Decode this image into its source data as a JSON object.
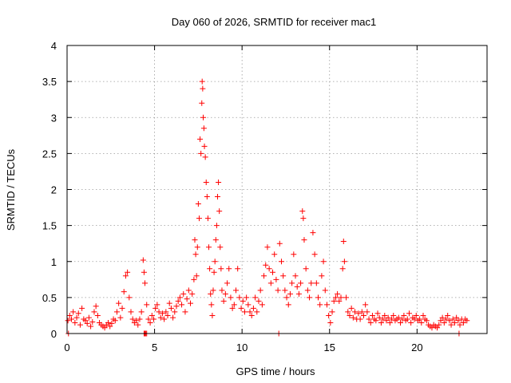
{
  "chart_data": {
    "type": "scatter",
    "title": "Day 060 of 2026, SRMTID for receiver mac1",
    "xlabel": "GPS time / hours",
    "ylabel": "SRMTID / TECUs",
    "xlim": [
      0,
      24
    ],
    "ylim": [
      0,
      4
    ],
    "xticks": [
      0,
      5,
      10,
      15,
      20
    ],
    "yticks": [
      0,
      0.5,
      1,
      1.5,
      2,
      2.5,
      3,
      3.5,
      4
    ],
    "xtick_labels": [
      "0",
      "5",
      "10",
      "15",
      "20"
    ],
    "ytick_labels": [
      "0",
      "0.5",
      "1",
      "1.5",
      "2",
      "2.5",
      "3",
      "3.5",
      "4"
    ],
    "grid": true,
    "marker": "plus",
    "color": "#ff0000",
    "series": [
      {
        "name": "SRMTID",
        "points": [
          [
            0.05,
            0.18
          ],
          [
            0.15,
            0.25
          ],
          [
            0.25,
            0.2
          ],
          [
            0.35,
            0.3
          ],
          [
            0.45,
            0.15
          ],
          [
            0.55,
            0.22
          ],
          [
            0.65,
            0.28
          ],
          [
            0.75,
            0.12
          ],
          [
            0.85,
            0.35
          ],
          [
            0.95,
            0.2
          ],
          [
            1.05,
            0.18
          ],
          [
            1.15,
            0.14
          ],
          [
            1.25,
            0.22
          ],
          [
            1.35,
            0.1
          ],
          [
            1.45,
            0.16
          ],
          [
            1.55,
            0.3
          ],
          [
            1.65,
            0.38
          ],
          [
            1.75,
            0.25
          ],
          [
            1.85,
            0.15
          ],
          [
            1.95,
            0.12
          ],
          [
            2.05,
            0.1
          ],
          [
            2.15,
            0.08
          ],
          [
            2.25,
            0.12
          ],
          [
            2.35,
            0.15
          ],
          [
            2.45,
            0.1
          ],
          [
            2.55,
            0.14
          ],
          [
            2.65,
            0.2
          ],
          [
            2.75,
            0.18
          ],
          [
            2.85,
            0.3
          ],
          [
            2.95,
            0.42
          ],
          [
            3.05,
            0.22
          ],
          [
            3.15,
            0.35
          ],
          [
            3.25,
            0.58
          ],
          [
            3.35,
            0.8
          ],
          [
            3.45,
            0.85
          ],
          [
            3.55,
            0.5
          ],
          [
            3.65,
            0.3
          ],
          [
            3.75,
            0.2
          ],
          [
            3.85,
            0.15
          ],
          [
            3.95,
            0.18
          ],
          [
            4.05,
            0.12
          ],
          [
            4.15,
            0.2
          ],
          [
            4.25,
            0.3
          ],
          [
            4.35,
            1.02
          ],
          [
            4.4,
            0.85
          ],
          [
            4.45,
            0.7
          ],
          [
            4.55,
            0.4
          ],
          [
            4.65,
            0.2
          ],
          [
            4.75,
            0.15
          ],
          [
            4.85,
            0.25
          ],
          [
            4.95,
            0.2
          ],
          [
            5.05,
            0.35
          ],
          [
            5.15,
            0.4
          ],
          [
            5.25,
            0.3
          ],
          [
            5.35,
            0.22
          ],
          [
            5.45,
            0.28
          ],
          [
            5.55,
            0.2
          ],
          [
            5.65,
            0.3
          ],
          [
            5.75,
            0.25
          ],
          [
            5.85,
            0.42
          ],
          [
            5.95,
            0.35
          ],
          [
            6.05,
            0.22
          ],
          [
            6.15,
            0.3
          ],
          [
            6.25,
            0.38
          ],
          [
            6.35,
            0.45
          ],
          [
            6.45,
            0.5
          ],
          [
            6.55,
            0.4
          ],
          [
            6.65,
            0.55
          ],
          [
            6.75,
            0.3
          ],
          [
            6.85,
            0.48
          ],
          [
            6.95,
            0.6
          ],
          [
            7.05,
            0.42
          ],
          [
            7.15,
            0.55
          ],
          [
            7.25,
            0.75
          ],
          [
            7.3,
            1.3
          ],
          [
            7.35,
            1.1
          ],
          [
            7.4,
            0.8
          ],
          [
            7.45,
            1.2
          ],
          [
            7.5,
            1.8
          ],
          [
            7.55,
            1.6
          ],
          [
            7.6,
            2.7
          ],
          [
            7.65,
            2.5
          ],
          [
            7.7,
            3.2
          ],
          [
            7.72,
            3.5
          ],
          [
            7.75,
            3.4
          ],
          [
            7.78,
            3.0
          ],
          [
            7.82,
            2.85
          ],
          [
            7.85,
            2.6
          ],
          [
            7.9,
            2.45
          ],
          [
            7.95,
            2.1
          ],
          [
            8.0,
            1.9
          ],
          [
            8.05,
            1.6
          ],
          [
            8.1,
            1.2
          ],
          [
            8.15,
            0.9
          ],
          [
            8.2,
            0.55
          ],
          [
            8.25,
            0.4
          ],
          [
            8.3,
            0.25
          ],
          [
            8.35,
            0.6
          ],
          [
            8.4,
            0.85
          ],
          [
            8.45,
            1.0
          ],
          [
            8.5,
            1.3
          ],
          [
            8.55,
            1.5
          ],
          [
            8.6,
            1.9
          ],
          [
            8.65,
            2.1
          ],
          [
            8.7,
            1.7
          ],
          [
            8.75,
            1.2
          ],
          [
            8.8,
            0.9
          ],
          [
            8.85,
            0.6
          ],
          [
            8.95,
            0.45
          ],
          [
            9.05,
            0.55
          ],
          [
            9.15,
            0.7
          ],
          [
            9.25,
            0.9
          ],
          [
            9.35,
            0.5
          ],
          [
            9.45,
            0.35
          ],
          [
            9.55,
            0.4
          ],
          [
            9.65,
            0.6
          ],
          [
            9.75,
            0.9
          ],
          [
            9.85,
            0.5
          ],
          [
            9.95,
            0.35
          ],
          [
            10.05,
            0.45
          ],
          [
            10.15,
            0.3
          ],
          [
            10.25,
            0.5
          ],
          [
            10.35,
            0.4
          ],
          [
            10.45,
            0.3
          ],
          [
            10.55,
            0.25
          ],
          [
            10.65,
            0.35
          ],
          [
            10.75,
            0.5
          ],
          [
            10.85,
            0.3
          ],
          [
            10.95,
            0.45
          ],
          [
            11.05,
            0.6
          ],
          [
            11.15,
            0.4
          ],
          [
            11.25,
            0.8
          ],
          [
            11.35,
            0.95
          ],
          [
            11.45,
            1.2
          ],
          [
            11.55,
            0.9
          ],
          [
            11.65,
            0.7
          ],
          [
            11.75,
            0.85
          ],
          [
            11.85,
            1.1
          ],
          [
            11.95,
            0.75
          ],
          [
            12.05,
            0.6
          ],
          [
            12.15,
            1.25
          ],
          [
            12.25,
            1.0
          ],
          [
            12.35,
            0.8
          ],
          [
            12.45,
            0.6
          ],
          [
            12.55,
            0.5
          ],
          [
            12.65,
            0.4
          ],
          [
            12.75,
            0.55
          ],
          [
            12.85,
            0.7
          ],
          [
            12.95,
            1.1
          ],
          [
            13.05,
            0.8
          ],
          [
            13.15,
            0.65
          ],
          [
            13.25,
            0.55
          ],
          [
            13.35,
            0.7
          ],
          [
            13.45,
            1.7
          ],
          [
            13.5,
            1.6
          ],
          [
            13.55,
            1.3
          ],
          [
            13.65,
            0.9
          ],
          [
            13.75,
            0.6
          ],
          [
            13.85,
            0.5
          ],
          [
            13.95,
            0.7
          ],
          [
            14.05,
            1.4
          ],
          [
            14.15,
            1.1
          ],
          [
            14.25,
            0.7
          ],
          [
            14.35,
            0.5
          ],
          [
            14.45,
            0.4
          ],
          [
            14.55,
            0.8
          ],
          [
            14.65,
            1.0
          ],
          [
            14.75,
            0.6
          ],
          [
            14.85,
            0.4
          ],
          [
            14.95,
            0.25
          ],
          [
            15.05,
            0.15
          ],
          [
            15.15,
            0.3
          ],
          [
            15.25,
            0.45
          ],
          [
            15.35,
            0.5
          ],
          [
            15.45,
            0.55
          ],
          [
            15.55,
            0.45
          ],
          [
            15.65,
            0.5
          ],
          [
            15.75,
            0.9
          ],
          [
            15.8,
            1.28
          ],
          [
            15.85,
            1.0
          ],
          [
            15.95,
            0.5
          ],
          [
            16.05,
            0.3
          ],
          [
            16.15,
            0.25
          ],
          [
            16.25,
            0.35
          ],
          [
            16.35,
            0.22
          ],
          [
            16.45,
            0.3
          ],
          [
            16.55,
            0.2
          ],
          [
            16.65,
            0.28
          ],
          [
            16.75,
            0.2
          ],
          [
            16.85,
            0.3
          ],
          [
            16.95,
            0.25
          ],
          [
            17.05,
            0.4
          ],
          [
            17.15,
            0.3
          ],
          [
            17.25,
            0.2
          ],
          [
            17.35,
            0.15
          ],
          [
            17.45,
            0.25
          ],
          [
            17.55,
            0.2
          ],
          [
            17.65,
            0.18
          ],
          [
            17.75,
            0.28
          ],
          [
            17.85,
            0.22
          ],
          [
            17.95,
            0.15
          ],
          [
            18.05,
            0.2
          ],
          [
            18.15,
            0.25
          ],
          [
            18.25,
            0.18
          ],
          [
            18.35,
            0.22
          ],
          [
            18.45,
            0.15
          ],
          [
            18.55,
            0.2
          ],
          [
            18.65,
            0.25
          ],
          [
            18.75,
            0.18
          ],
          [
            18.85,
            0.2
          ],
          [
            18.95,
            0.22
          ],
          [
            19.05,
            0.15
          ],
          [
            19.15,
            0.2
          ],
          [
            19.25,
            0.25
          ],
          [
            19.35,
            0.18
          ],
          [
            19.45,
            0.2
          ],
          [
            19.55,
            0.28
          ],
          [
            19.65,
            0.15
          ],
          [
            19.75,
            0.22
          ],
          [
            19.85,
            0.2
          ],
          [
            19.95,
            0.25
          ],
          [
            20.05,
            0.18
          ],
          [
            20.15,
            0.2
          ],
          [
            20.25,
            0.15
          ],
          [
            20.35,
            0.25
          ],
          [
            20.45,
            0.2
          ],
          [
            20.55,
            0.18
          ],
          [
            20.65,
            0.12
          ],
          [
            20.75,
            0.1
          ],
          [
            20.85,
            0.08
          ],
          [
            20.95,
            0.12
          ],
          [
            21.05,
            0.1
          ],
          [
            21.15,
            0.08
          ],
          [
            21.25,
            0.12
          ],
          [
            21.35,
            0.18
          ],
          [
            21.45,
            0.22
          ],
          [
            21.55,
            0.15
          ],
          [
            21.65,
            0.2
          ],
          [
            21.75,
            0.25
          ],
          [
            21.85,
            0.18
          ],
          [
            21.95,
            0.12
          ],
          [
            22.05,
            0.2
          ],
          [
            22.15,
            0.15
          ],
          [
            22.25,
            0.22
          ],
          [
            22.35,
            0.18
          ],
          [
            22.45,
            0.12
          ],
          [
            22.55,
            0.2
          ],
          [
            22.65,
            0.15
          ],
          [
            22.75,
            0.2
          ],
          [
            22.85,
            0.18
          ],
          [
            0.08,
            0.0
          ],
          [
            4.4,
            0.0
          ],
          [
            4.45,
            0.0
          ],
          [
            4.5,
            0.0
          ],
          [
            4.55,
            0.0
          ],
          [
            12.1,
            0.0
          ],
          [
            22.4,
            0.0
          ]
        ]
      }
    ]
  }
}
